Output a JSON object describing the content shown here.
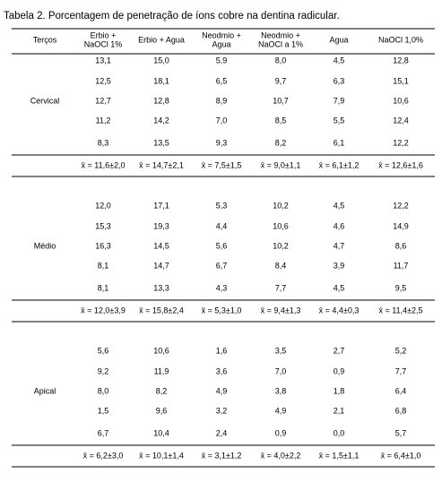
{
  "title": "Tabela 2. Porcentagem de penetração de íons cobre na dentina radicular.",
  "table": {
    "header": [
      "Terços",
      [
        "Erbio +",
        "NaOCl 1%"
      ],
      [
        "Erbio + Agua"
      ],
      [
        "Neodmio +",
        "Agua"
      ],
      [
        "Neodmio +",
        "NaOCl a 1%"
      ],
      [
        "Agua"
      ],
      [
        "NaOCl 1,0%"
      ]
    ],
    "sections": [
      {
        "label": "Cervical",
        "rows": [
          [
            "13,1",
            "15,0",
            "5,9",
            "8,0",
            "4,5",
            "12,8"
          ],
          [
            "12,5",
            "18,1",
            "6,5",
            "9,7",
            "6,3",
            "15,1"
          ],
          [
            "12,7",
            "12,8",
            "8,9",
            "10,7",
            "7,9",
            "10,6"
          ],
          [
            "11,2",
            "14,2",
            "7,0",
            "8,5",
            "5,5",
            "12,4"
          ],
          [
            "8,3",
            "13,5",
            "9,3",
            "8,2",
            "6,1",
            "12,2"
          ]
        ],
        "means": [
          "x̄ = 11,6±2,0",
          "x̄ = 14,7±2,1",
          "x̄ = 7,5±1,5",
          "x̄ = 9,0±1,1",
          "x̄ = 6,1±1,2",
          "x̄ = 12,6±1,6"
        ]
      },
      {
        "label": "Médio",
        "rows": [
          [
            "12,0",
            "17,1",
            "5,3",
            "10,2",
            "4,5",
            "12,2"
          ],
          [
            "15,3",
            "19,3",
            "4,4",
            "10,6",
            "4,6",
            "14,9"
          ],
          [
            "16,3",
            "14,5",
            "5,6",
            "10,2",
            "4,7",
            "8,6"
          ],
          [
            "8,1",
            "14,7",
            "6,7",
            "8,4",
            "3,9",
            "11,7"
          ],
          [
            "8,1",
            "13,3",
            "4,3",
            "7,7",
            "4,5",
            "9,5"
          ]
        ],
        "means": [
          "x̄ = 12,0±3,9",
          "x̄ = 15,8±2,4",
          "x̄ = 5,3±1,0",
          "x̄ = 9,4±1,3",
          "x̄ = 4,4±0,3",
          "x̄ = 11,4±2,5"
        ]
      },
      {
        "label": "Apical",
        "rows": [
          [
            "5,6",
            "10,6",
            "1,6",
            "3,5",
            "2,7",
            "5,2"
          ],
          [
            "9,2",
            "11,9",
            "3,6",
            "7,0",
            "0,9",
            "7,7"
          ],
          [
            "8,0",
            "8,2",
            "4,9",
            "3,8",
            "1,8",
            "6,4"
          ],
          [
            "1,5",
            "9,6",
            "3,2",
            "4,9",
            "2,1",
            "6,8"
          ],
          [
            "6,7",
            "10,4",
            "2,4",
            "0,9",
            "0,0",
            "5,7"
          ]
        ],
        "means": [
          "x̄ = 6,2±3,0",
          "x̄ = 10,1±1,4",
          "x̄ = 3,1±1,2",
          "x̄ = 4,0±2,2",
          "x̄ = 1,5±1,1",
          "x̄ = 6,4±1,0"
        ]
      }
    ]
  }
}
